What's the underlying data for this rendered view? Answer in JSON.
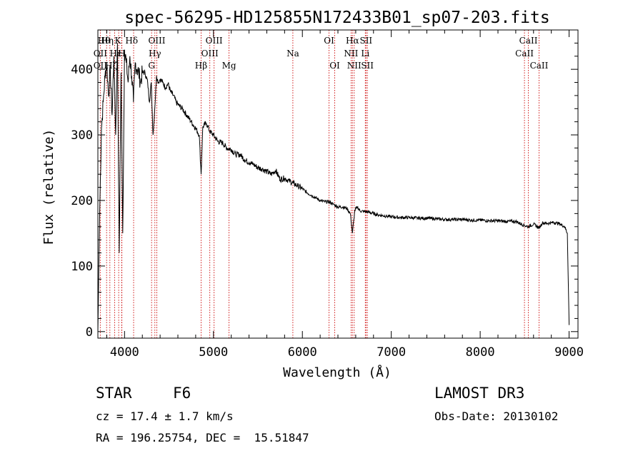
{
  "chart_data": {
    "type": "line",
    "title": "spec-56295-HD125855N172433B01_sp07-203.fits",
    "xlabel": "Wavelength (Å)",
    "ylabel": "Flux (relative)",
    "xlim": [
      3700,
      9100
    ],
    "ylim": [
      -10,
      460
    ],
    "xticks": [
      4000,
      5000,
      6000,
      7000,
      8000,
      9000
    ],
    "yticks": [
      0,
      100,
      200,
      300,
      400
    ],
    "grid": false,
    "series": [
      {
        "name": "flux",
        "x": [
          3700,
          3720,
          3740,
          3760,
          3780,
          3800,
          3820,
          3840,
          3860,
          3880,
          3900,
          3920,
          3940,
          3960,
          3980,
          4000,
          4020,
          4040,
          4060,
          4080,
          4100,
          4120,
          4140,
          4160,
          4180,
          4200,
          4230,
          4260,
          4280,
          4300,
          4320,
          4340,
          4360,
          4380,
          4400,
          4430,
          4460,
          4490,
          4520,
          4550,
          4580,
          4610,
          4650,
          4700,
          4750,
          4800,
          4840,
          4861,
          4880,
          4920,
          4960,
          5000,
          5050,
          5100,
          5150,
          5200,
          5250,
          5300,
          5350,
          5400,
          5450,
          5500,
          5550,
          5600,
          5650,
          5700,
          5750,
          5800,
          5850,
          5900,
          5950,
          6000,
          6050,
          6100,
          6150,
          6200,
          6250,
          6300,
          6350,
          6400,
          6450,
          6500,
          6540,
          6563,
          6590,
          6620,
          6650,
          6700,
          6750,
          6800,
          6850,
          6900,
          6950,
          7000,
          7100,
          7200,
          7300,
          7400,
          7500,
          7600,
          7700,
          7800,
          7900,
          8000,
          8100,
          8200,
          8300,
          8400,
          8498,
          8542,
          8600,
          8662,
          8700,
          8750,
          8800,
          8850,
          8900,
          8950,
          8980,
          9000
        ],
        "y": [
          0,
          180,
          310,
          350,
          390,
          410,
          360,
          400,
          330,
          420,
          300,
          440,
          120,
          395,
          150,
          430,
          410,
          380,
          420,
          390,
          350,
          410,
          400,
          395,
          380,
          395,
          395,
          380,
          350,
          380,
          300,
          340,
          390,
          380,
          385,
          380,
          372,
          378,
          365,
          360,
          350,
          345,
          340,
          330,
          320,
          310,
          300,
          240,
          312,
          318,
          305,
          300,
          290,
          288,
          280,
          278,
          270,
          270,
          262,
          258,
          255,
          250,
          248,
          244,
          240,
          246,
          232,
          234,
          230,
          226,
          222,
          218,
          212,
          208,
          204,
          200,
          198,
          198,
          194,
          190,
          190,
          188,
          180,
          150,
          185,
          190,
          184,
          183,
          182,
          180,
          178,
          177,
          176,
          175,
          174,
          174,
          173,
          173,
          172,
          171,
          171,
          171,
          170,
          170,
          169,
          169,
          168,
          168,
          162,
          160,
          164,
          158,
          166,
          165,
          166,
          166,
          164,
          160,
          150,
          10
        ]
      }
    ],
    "lines": [
      {
        "name": "Hθ",
        "x": 3798
      },
      {
        "name": "Hη",
        "x": 3835
      },
      {
        "name": "OII",
        "x": 3727
      },
      {
        "name": "Hζ",
        "x": 3889
      },
      {
        "name": "K",
        "x": 3934
      },
      {
        "name": "H",
        "x": 3968
      },
      {
        "name": "Hε",
        "x": 3970
      },
      {
        "name": "Hδ",
        "x": 4102
      },
      {
        "name": "OIII",
        "x": 4363
      },
      {
        "name": "Hγ",
        "x": 4341
      },
      {
        "name": "G",
        "x": 4304
      },
      {
        "name": "Hβ",
        "x": 4861
      },
      {
        "name": "OIII",
        "x": 4959
      },
      {
        "name": "OIII",
        "x": 5007
      },
      {
        "name": "Mg",
        "x": 5175
      },
      {
        "name": "Na",
        "x": 5893
      },
      {
        "name": "OI",
        "x": 6300
      },
      {
        "name": "OI",
        "x": 6364
      },
      {
        "name": "NII",
        "x": 6548
      },
      {
        "name": "Hα",
        "x": 6563
      },
      {
        "name": "NII",
        "x": 6583
      },
      {
        "name": "Li",
        "x": 6708
      },
      {
        "name": "SII",
        "x": 6716
      },
      {
        "name": "SII",
        "x": 6731
      },
      {
        "name": "CaII",
        "x": 8498
      },
      {
        "name": "CaII",
        "x": 8542
      },
      {
        "name": "CaII",
        "x": 8662
      }
    ],
    "labels": [
      {
        "text": "Hθ",
        "x": 3768,
        "row": 1
      },
      {
        "text": "Hη",
        "x": 3805,
        "row": 1
      },
      {
        "text": "K",
        "x": 3925,
        "row": 1
      },
      {
        "text": "Hδ",
        "x": 4080,
        "row": 1
      },
      {
        "text": "OIII",
        "x": 4363,
        "row": 1
      },
      {
        "text": "OIII",
        "x": 5007,
        "row": 1
      },
      {
        "text": "OI",
        "x": 6300,
        "row": 1
      },
      {
        "text": "Hα",
        "x": 6563,
        "row": 1
      },
      {
        "text": "SII",
        "x": 6716,
        "row": 1
      },
      {
        "text": "CaII",
        "x": 8542,
        "row": 1
      },
      {
        "text": "OII",
        "x": 3727,
        "row": 2
      },
      {
        "text": "Hε",
        "x": 3900,
        "row": 2
      },
      {
        "text": "H",
        "x": 3968,
        "row": 2
      },
      {
        "text": "Hγ",
        "x": 4341,
        "row": 2
      },
      {
        "text": "OIII",
        "x": 4959,
        "row": 2
      },
      {
        "text": "Na",
        "x": 5893,
        "row": 2
      },
      {
        "text": "NII",
        "x": 6548,
        "row": 2
      },
      {
        "text": "Li",
        "x": 6708,
        "row": 2
      },
      {
        "text": "CaII",
        "x": 8498,
        "row": 2
      },
      {
        "text": "OII",
        "x": 3727,
        "row": 3
      },
      {
        "text": "Hζ",
        "x": 3850,
        "row": 3
      },
      {
        "text": "G",
        "x": 4304,
        "row": 3
      },
      {
        "text": "Hβ",
        "x": 4861,
        "row": 3
      },
      {
        "text": "Mg",
        "x": 5175,
        "row": 3
      },
      {
        "text": "OI",
        "x": 6364,
        "row": 3
      },
      {
        "text": "NII",
        "x": 6583,
        "row": 3
      },
      {
        "text": "SII",
        "x": 6731,
        "row": 3
      },
      {
        "text": "CaII",
        "x": 8662,
        "row": 3
      }
    ],
    "colors": {
      "spectrum": "#000000",
      "lines": "#cc0000",
      "axes": "#000000"
    }
  },
  "info": {
    "object_class": "STAR",
    "subclass": "F6",
    "survey": "LAMOST DR3",
    "redshift": "cz = 17.4 ± 1.7 km/s",
    "obs_date": "Obs-Date: 20130102",
    "coords": "RA = 196.25754, DEC =  15.51847"
  }
}
